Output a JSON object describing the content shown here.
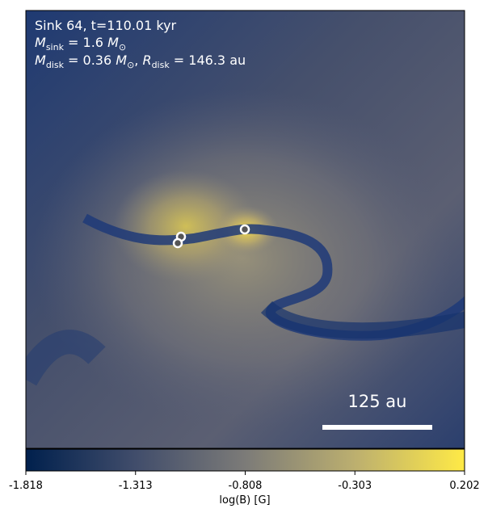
{
  "chart_data": {
    "type": "image",
    "annotations": [
      [
        "Sink 64, t=110.01 kyr"
      ],
      [
        "M",
        "sink",
        " = 1.6 ",
        "M",
        "⊙"
      ],
      [
        "M",
        "disk",
        " = 0.36 ",
        "M",
        "⊙",
        ", ",
        "R",
        "disk",
        " = 146.3 au"
      ]
    ],
    "scale_bar_label": "125 au",
    "colorbar_label": "log(B) [G]",
    "clim": [
      -1.818,
      0.202
    ],
    "colorbar_ticks": [
      -1.818,
      -1.313,
      -0.808,
      -0.303,
      0.202
    ],
    "colormap": [
      "#00204d",
      "#414d6b",
      "#7c7b78",
      "#bcaf6f",
      "#ffea46"
    ]
  }
}
